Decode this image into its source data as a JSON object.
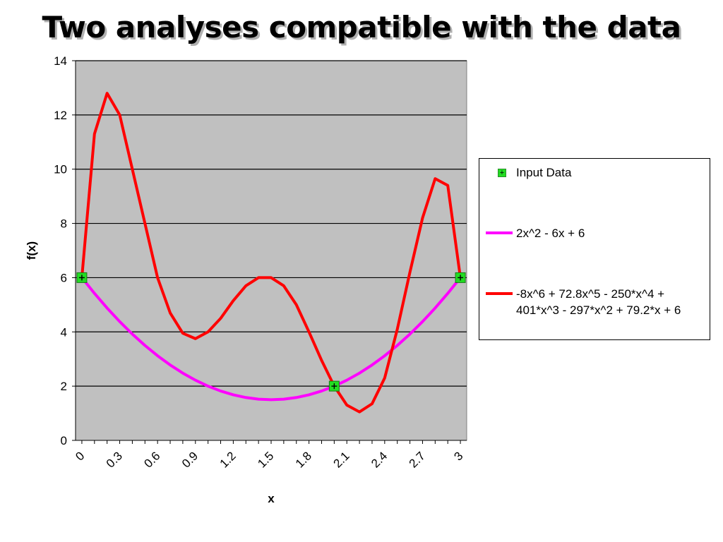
{
  "title": "Two analyses compatible with the data",
  "chart_data": {
    "type": "line",
    "xlabel": "x",
    "ylabel": "f(x)",
    "xlim": [
      0,
      3.1
    ],
    "ylim": [
      0,
      14
    ],
    "grid": "horizontal",
    "legend_position": "right",
    "x_tick_labels": [
      "0",
      "0.3",
      "0.6",
      "0.9",
      "1.2",
      "1.5",
      "1.8",
      "2.1",
      "2.4",
      "2.7",
      "3"
    ],
    "y_tick_labels": [
      "0",
      "2",
      "4",
      "6",
      "8",
      "10",
      "12",
      "14"
    ],
    "x": [
      0,
      0.1,
      0.2,
      0.3,
      0.4,
      0.5,
      0.6,
      0.7,
      0.8,
      0.9,
      1.0,
      1.1,
      1.2,
      1.3,
      1.4,
      1.5,
      1.6,
      1.7,
      1.8,
      1.9,
      2.0,
      2.1,
      2.2,
      2.3,
      2.4,
      2.5,
      2.6,
      2.7,
      2.8,
      2.9,
      3.0
    ],
    "series": [
      {
        "name": "Input Data",
        "style": "markers",
        "color": "#22dd22",
        "points": [
          [
            0,
            6
          ],
          [
            2,
            2
          ],
          [
            3,
            6
          ]
        ]
      },
      {
        "name": "2x^2 - 6x + 6",
        "style": "line",
        "color": "#ff00ff",
        "values": [
          6.0,
          5.42,
          4.88,
          4.38,
          3.92,
          3.5,
          3.12,
          2.78,
          2.48,
          2.22,
          2.0,
          1.82,
          1.68,
          1.58,
          1.52,
          1.5,
          1.52,
          1.58,
          1.68,
          1.82,
          2.0,
          2.22,
          2.48,
          2.78,
          3.12,
          3.5,
          3.92,
          4.38,
          4.88,
          5.42,
          6.0
        ]
      },
      {
        "name": "-8x^6 + 72.8x^5 - 250*x^4 + 401*x^3 - 297*x^2 + 79.2*x + 6",
        "style": "line",
        "color": "#ff0000",
        "values": [
          6.0,
          11.3,
          12.8,
          12.0,
          10.0,
          8.0,
          6.0,
          4.7,
          3.95,
          3.75,
          4.0,
          4.5,
          5.15,
          5.7,
          6.0,
          6.0,
          5.7,
          5.0,
          4.0,
          2.95,
          2.0,
          1.3,
          1.05,
          1.35,
          2.3,
          4.1,
          6.2,
          8.2,
          9.65,
          9.4,
          6.0
        ]
      }
    ]
  }
}
